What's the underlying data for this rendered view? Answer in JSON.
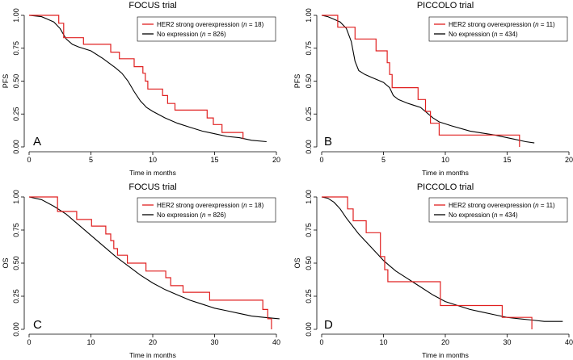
{
  "chart_data": [
    {
      "type": "line",
      "panel_label": "A",
      "title": "FOCUS trial",
      "xlabel": "Time in months",
      "ylabel": "PFS",
      "xlim": [
        0,
        20
      ],
      "ylim": [
        0,
        1
      ],
      "xticks": [
        "0",
        "5",
        "10",
        "15",
        "20"
      ],
      "yticks": [
        "0.00",
        "0.25",
        "0.50",
        "0.75",
        "1.00"
      ],
      "legend": {
        "placement": "top-right",
        "entries": [
          {
            "pre": "HER2 strong overexpression (",
            "n_symbol": "n",
            "post": " = 18)"
          },
          {
            "pre": "No expression (",
            "n_symbol": "n",
            "post": " = 826)"
          }
        ]
      },
      "series": [
        {
          "name": "HER2 strong overexpression (n = 18)",
          "color": "#e02020",
          "step": true,
          "points": [
            [
              0,
              1.0
            ],
            [
              2.4,
              1.0
            ],
            [
              2.4,
              0.94
            ],
            [
              2.8,
              0.94
            ],
            [
              2.8,
              0.83
            ],
            [
              4.4,
              0.83
            ],
            [
              4.4,
              0.78
            ],
            [
              6.6,
              0.78
            ],
            [
              6.6,
              0.72
            ],
            [
              7.3,
              0.72
            ],
            [
              7.3,
              0.67
            ],
            [
              8.5,
              0.67
            ],
            [
              8.5,
              0.61
            ],
            [
              9.2,
              0.61
            ],
            [
              9.2,
              0.56
            ],
            [
              9.4,
              0.56
            ],
            [
              9.4,
              0.5
            ],
            [
              9.6,
              0.5
            ],
            [
              9.6,
              0.44
            ],
            [
              10.8,
              0.44
            ],
            [
              10.8,
              0.39
            ],
            [
              11.2,
              0.39
            ],
            [
              11.2,
              0.33
            ],
            [
              11.8,
              0.33
            ],
            [
              11.8,
              0.28
            ],
            [
              14.4,
              0.28
            ],
            [
              14.4,
              0.22
            ],
            [
              14.9,
              0.22
            ],
            [
              14.9,
              0.17
            ],
            [
              15.6,
              0.17
            ],
            [
              15.6,
              0.11
            ],
            [
              17.3,
              0.11
            ],
            [
              17.3,
              0.06
            ]
          ]
        },
        {
          "name": "No expression (n = 826)",
          "color": "#000000",
          "step": false,
          "points": [
            [
              0,
              1.0
            ],
            [
              1,
              0.99
            ],
            [
              1.5,
              0.97
            ],
            [
              2,
              0.95
            ],
            [
              2.5,
              0.9
            ],
            [
              3,
              0.82
            ],
            [
              3.5,
              0.78
            ],
            [
              4,
              0.76
            ],
            [
              5,
              0.73
            ],
            [
              6,
              0.67
            ],
            [
              7,
              0.6
            ],
            [
              7.5,
              0.56
            ],
            [
              8,
              0.5
            ],
            [
              8.5,
              0.42
            ],
            [
              9,
              0.35
            ],
            [
              9.5,
              0.3
            ],
            [
              10,
              0.27
            ],
            [
              11,
              0.22
            ],
            [
              12,
              0.18
            ],
            [
              13,
              0.15
            ],
            [
              14,
              0.12
            ],
            [
              15,
              0.1
            ],
            [
              16,
              0.08
            ],
            [
              17,
              0.07
            ],
            [
              18,
              0.05
            ],
            [
              19.2,
              0.04
            ]
          ]
        }
      ]
    },
    {
      "type": "line",
      "panel_label": "B",
      "title": "PICCOLO trial",
      "xlabel": "Time in months",
      "ylabel": "PFS",
      "xlim": [
        0,
        20
      ],
      "ylim": [
        0,
        1
      ],
      "xticks": [
        "0",
        "5",
        "10",
        "15",
        "20"
      ],
      "yticks": [
        "0.00",
        "0.25",
        "0.50",
        "0.75",
        "1.00"
      ],
      "legend": {
        "placement": "top-right",
        "entries": [
          {
            "pre": "HER2 strong overexpression (",
            "n_symbol": "n",
            "post": " = 11)"
          },
          {
            "pre": "No expression (",
            "n_symbol": "n",
            "post": " = 434)"
          }
        ]
      },
      "series": [
        {
          "name": "HER2 strong overexpression (n = 11)",
          "color": "#e02020",
          "step": true,
          "points": [
            [
              0,
              1.0
            ],
            [
              1.3,
              1.0
            ],
            [
              1.3,
              0.91
            ],
            [
              2.7,
              0.91
            ],
            [
              2.7,
              0.82
            ],
            [
              4.4,
              0.82
            ],
            [
              4.4,
              0.73
            ],
            [
              5.3,
              0.73
            ],
            [
              5.3,
              0.64
            ],
            [
              5.5,
              0.64
            ],
            [
              5.5,
              0.55
            ],
            [
              5.7,
              0.55
            ],
            [
              5.7,
              0.45
            ],
            [
              7.8,
              0.45
            ],
            [
              7.8,
              0.36
            ],
            [
              8.4,
              0.36
            ],
            [
              8.4,
              0.27
            ],
            [
              8.8,
              0.27
            ],
            [
              8.8,
              0.18
            ],
            [
              9.5,
              0.18
            ],
            [
              9.5,
              0.09
            ],
            [
              16,
              0.09
            ],
            [
              16,
              0.0
            ]
          ]
        },
        {
          "name": "No expression (n = 434)",
          "color": "#000000",
          "step": false,
          "points": [
            [
              0,
              1.0
            ],
            [
              0.5,
              0.99
            ],
            [
              1,
              0.97
            ],
            [
              1.5,
              0.95
            ],
            [
              2,
              0.9
            ],
            [
              2.4,
              0.8
            ],
            [
              2.7,
              0.65
            ],
            [
              3,
              0.58
            ],
            [
              3.5,
              0.55
            ],
            [
              4,
              0.53
            ],
            [
              4.5,
              0.51
            ],
            [
              5,
              0.49
            ],
            [
              5.5,
              0.45
            ],
            [
              5.8,
              0.39
            ],
            [
              6.2,
              0.36
            ],
            [
              7,
              0.33
            ],
            [
              8,
              0.3
            ],
            [
              9,
              0.22
            ],
            [
              9.5,
              0.19
            ],
            [
              10.5,
              0.16
            ],
            [
              12,
              0.12
            ],
            [
              14,
              0.09
            ],
            [
              15.5,
              0.06
            ],
            [
              16.5,
              0.04
            ],
            [
              17.2,
              0.03
            ]
          ]
        }
      ]
    },
    {
      "type": "line",
      "panel_label": "C",
      "title": "FOCUS trial",
      "xlabel": "Time in months",
      "ylabel": "OS",
      "xlim": [
        0,
        40
      ],
      "ylim": [
        0,
        1
      ],
      "xticks": [
        "0",
        "10",
        "20",
        "30",
        "40"
      ],
      "yticks": [
        "0.00",
        "0.25",
        "0.50",
        "0.75",
        "1.00"
      ],
      "legend": {
        "placement": "top-right",
        "entries": [
          {
            "pre": "HER2 strong overexpression (",
            "n_symbol": "n",
            "post": " = 18)"
          },
          {
            "pre": "No expression (",
            "n_symbol": "n",
            "post": " = 826)"
          }
        ]
      },
      "series": [
        {
          "name": "HER2 strong overexpression (n = 18)",
          "color": "#e02020",
          "step": true,
          "points": [
            [
              0,
              1.0
            ],
            [
              4.6,
              1.0
            ],
            [
              4.6,
              0.89
            ],
            [
              7.7,
              0.89
            ],
            [
              7.7,
              0.83
            ],
            [
              10.1,
              0.83
            ],
            [
              10.1,
              0.78
            ],
            [
              12.4,
              0.78
            ],
            [
              12.4,
              0.72
            ],
            [
              13.2,
              0.72
            ],
            [
              13.2,
              0.67
            ],
            [
              13.7,
              0.67
            ],
            [
              13.7,
              0.61
            ],
            [
              14.3,
              0.61
            ],
            [
              14.3,
              0.56
            ],
            [
              15.9,
              0.56
            ],
            [
              15.9,
              0.5
            ],
            [
              18.9,
              0.5
            ],
            [
              18.9,
              0.44
            ],
            [
              22.1,
              0.44
            ],
            [
              22.1,
              0.39
            ],
            [
              22.9,
              0.39
            ],
            [
              22.9,
              0.33
            ],
            [
              24.9,
              0.33
            ],
            [
              24.9,
              0.28
            ],
            [
              29.2,
              0.28
            ],
            [
              29.2,
              0.22
            ],
            [
              37.8,
              0.22
            ],
            [
              37.8,
              0.15
            ],
            [
              38.6,
              0.15
            ],
            [
              38.6,
              0.08
            ],
            [
              39.2,
              0.08
            ],
            [
              39.2,
              0.0
            ]
          ]
        },
        {
          "name": "No expression (n = 826)",
          "color": "#000000",
          "step": false,
          "points": [
            [
              0,
              1.0
            ],
            [
              2,
              0.98
            ],
            [
              4,
              0.93
            ],
            [
              6,
              0.87
            ],
            [
              8,
              0.79
            ],
            [
              10,
              0.71
            ],
            [
              12,
              0.63
            ],
            [
              14,
              0.55
            ],
            [
              16,
              0.48
            ],
            [
              18,
              0.41
            ],
            [
              20,
              0.35
            ],
            [
              22,
              0.3
            ],
            [
              24,
              0.26
            ],
            [
              26,
              0.22
            ],
            [
              28,
              0.19
            ],
            [
              30,
              0.16
            ],
            [
              32,
              0.14
            ],
            [
              34,
              0.12
            ],
            [
              36,
              0.1
            ],
            [
              38,
              0.09
            ],
            [
              40.5,
              0.08
            ]
          ]
        }
      ]
    },
    {
      "type": "line",
      "panel_label": "D",
      "title": "PICCOLO trial",
      "xlabel": "Time in months",
      "ylabel": "OS",
      "xlim": [
        0,
        40
      ],
      "ylim": [
        0,
        1
      ],
      "xticks": [
        "0",
        "10",
        "20",
        "30",
        "40"
      ],
      "yticks": [
        "0.00",
        "0.25",
        "0.50",
        "0.75",
        "1.00"
      ],
      "legend": {
        "placement": "top-right",
        "entries": [
          {
            "pre": "HER2 strong overexpression (",
            "n_symbol": "n",
            "post": " = 11)"
          },
          {
            "pre": "No expression (",
            "n_symbol": "n",
            "post": " = 434)"
          }
        ]
      },
      "series": [
        {
          "name": "HER2 strong overexpression (n = 11)",
          "color": "#e02020",
          "step": true,
          "points": [
            [
              0,
              1.0
            ],
            [
              4.2,
              1.0
            ],
            [
              4.2,
              0.91
            ],
            [
              5.1,
              0.91
            ],
            [
              5.1,
              0.82
            ],
            [
              7.2,
              0.82
            ],
            [
              7.2,
              0.73
            ],
            [
              9.5,
              0.73
            ],
            [
              9.5,
              0.55
            ],
            [
              10.2,
              0.55
            ],
            [
              10.2,
              0.45
            ],
            [
              10.7,
              0.45
            ],
            [
              10.7,
              0.36
            ],
            [
              19.2,
              0.36
            ],
            [
              19.2,
              0.18
            ],
            [
              29.2,
              0.18
            ],
            [
              29.2,
              0.09
            ],
            [
              34,
              0.09
            ],
            [
              34,
              0.0
            ]
          ]
        },
        {
          "name": "No expression (n = 434)",
          "color": "#000000",
          "step": false,
          "points": [
            [
              0,
              1.0
            ],
            [
              1,
              0.99
            ],
            [
              2,
              0.96
            ],
            [
              3,
              0.91
            ],
            [
              4,
              0.84
            ],
            [
              5,
              0.78
            ],
            [
              6,
              0.72
            ],
            [
              7,
              0.67
            ],
            [
              8,
              0.62
            ],
            [
              9,
              0.57
            ],
            [
              10,
              0.52
            ],
            [
              11,
              0.48
            ],
            [
              12,
              0.44
            ],
            [
              14,
              0.38
            ],
            [
              16,
              0.32
            ],
            [
              18,
              0.26
            ],
            [
              20,
              0.21
            ],
            [
              22,
              0.18
            ],
            [
              24,
              0.15
            ],
            [
              26,
              0.13
            ],
            [
              28,
              0.11
            ],
            [
              30,
              0.09
            ],
            [
              32,
              0.08
            ],
            [
              34,
              0.07
            ],
            [
              36,
              0.06
            ],
            [
              39,
              0.06
            ]
          ]
        }
      ]
    }
  ]
}
